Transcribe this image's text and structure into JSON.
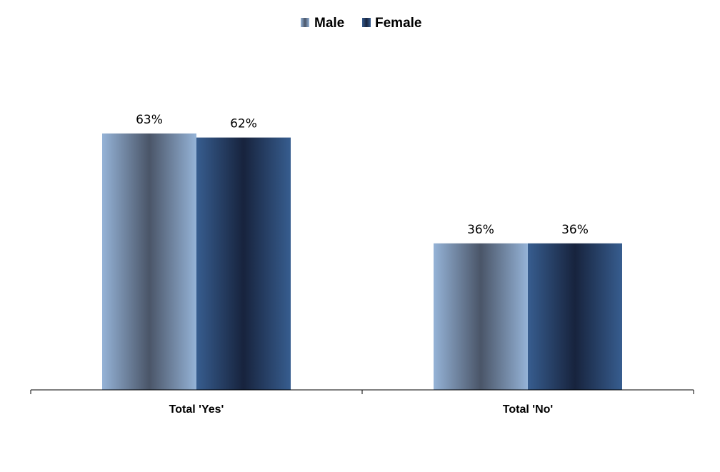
{
  "chart_data": {
    "type": "bar",
    "categories": [
      "Total 'Yes'",
      "Total 'No'"
    ],
    "series": [
      {
        "name": "Male",
        "values": [
          63,
          36
        ],
        "labels": [
          "63%",
          "36%"
        ],
        "color": "#95b3d7",
        "shade": "#4a5568"
      },
      {
        "name": "Female",
        "values": [
          62,
          36
        ],
        "labels": [
          "62%",
          "36%"
        ],
        "color": "#375d8f",
        "shade": "#17233d"
      }
    ],
    "ylim": [
      0,
      100
    ],
    "grid": false,
    "legend_position": "top-center",
    "title": "",
    "xlabel": "",
    "ylabel": ""
  }
}
